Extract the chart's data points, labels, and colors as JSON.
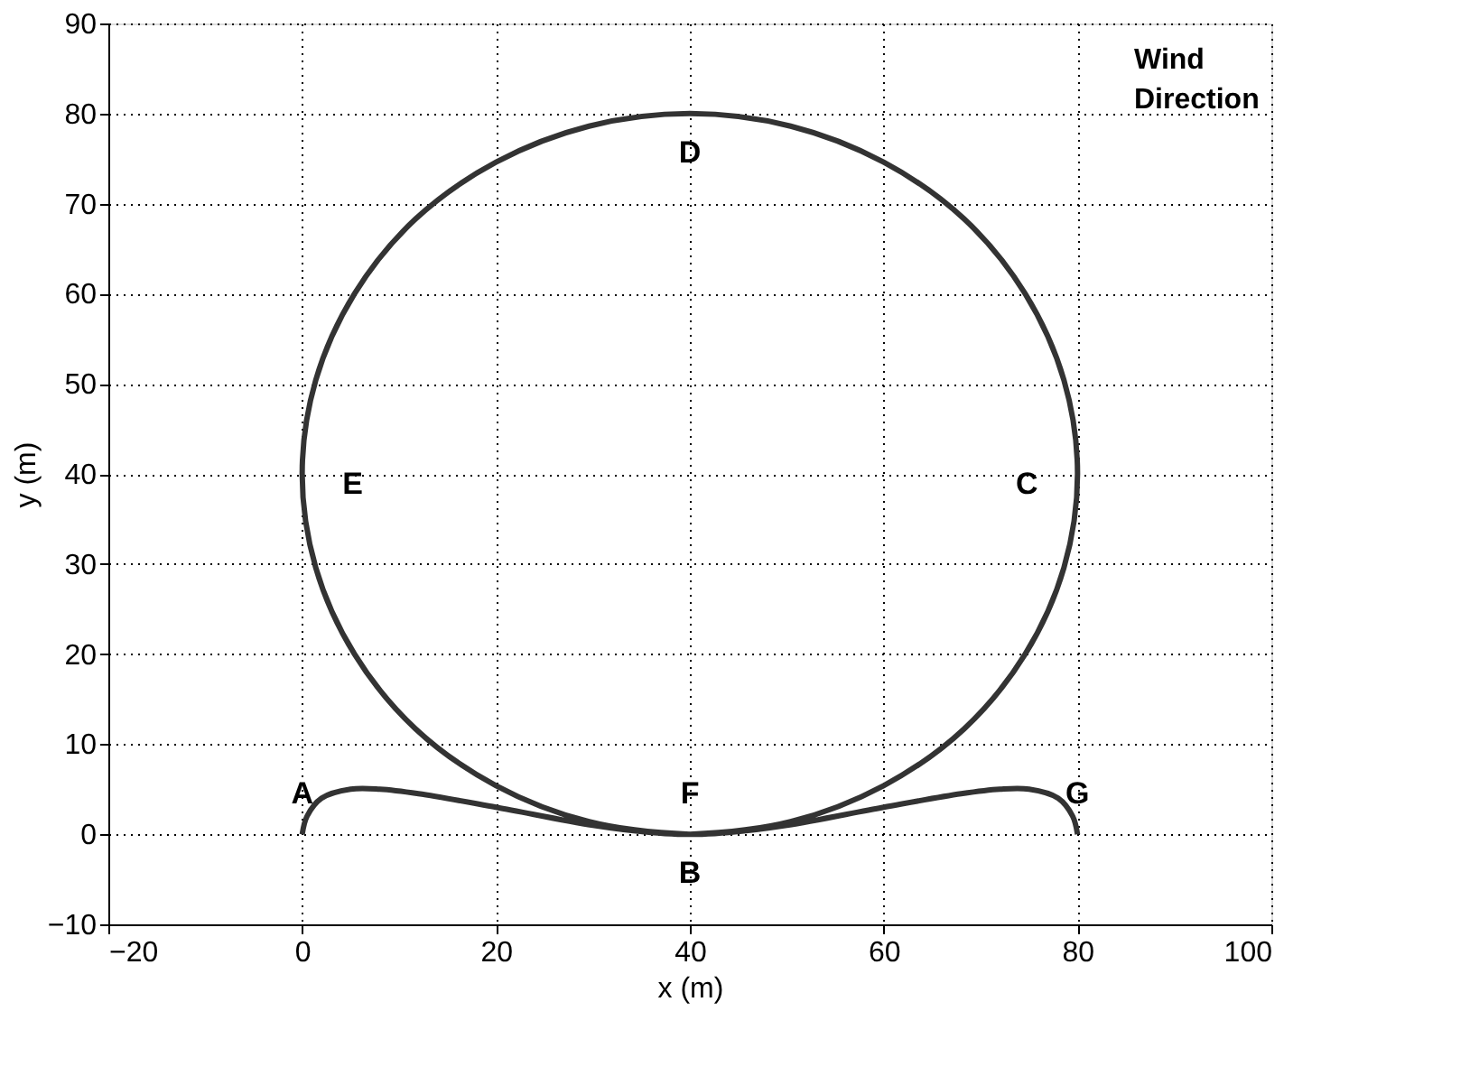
{
  "chart_data": {
    "type": "line",
    "xlabel": "x (m)",
    "ylabel": "y (m)",
    "xlim": [
      -20,
      100
    ],
    "xticks": [
      -20,
      0,
      20,
      40,
      60,
      80,
      100
    ],
    "ylim": [
      -10,
      90
    ],
    "yticks": [
      -10,
      0,
      10,
      20,
      30,
      40,
      50,
      60,
      70,
      80,
      90
    ],
    "grid": true,
    "marker": "none",
    "line_style": "solid",
    "series": [
      {
        "color": "#333333",
        "x": [
          0,
          0.5,
          2,
          5,
          8,
          12,
          20,
          30,
          36,
          40,
          50.4,
          60,
          68.3,
          74.6,
          78.6,
          80,
          78.6,
          74.6,
          68.3,
          60,
          50.4,
          40,
          29.6,
          20,
          11.7,
          5.4,
          1.4,
          0,
          1.4,
          5.4,
          11.7,
          20,
          29.6,
          40,
          44,
          50,
          60,
          68,
          72,
          75,
          78,
          79.5,
          80
        ],
        "values": [
          0,
          2,
          4,
          5,
          5,
          4.5,
          3,
          1,
          0.2,
          0,
          1.4,
          5.4,
          11.7,
          20,
          29.6,
          40,
          50.4,
          60,
          68.3,
          74.6,
          78.6,
          80,
          78.6,
          74.6,
          68.3,
          60,
          50.4,
          40,
          29.6,
          20,
          11.7,
          5.4,
          1.4,
          0,
          0.2,
          1,
          3,
          4.5,
          5,
          5,
          4,
          2,
          0
        ]
      }
    ],
    "annotations": [
      {
        "text": "A",
        "x": 0,
        "y": 0
      },
      {
        "text": "F",
        "x": 40,
        "y": 0
      },
      {
        "text": "G",
        "x": 80,
        "y": 0
      },
      {
        "text": "B",
        "x": 40,
        "y": 0
      },
      {
        "text": "C",
        "x": 80,
        "y": 40
      },
      {
        "text": "D",
        "x": 40,
        "y": 80
      },
      {
        "text": "E",
        "x": 0,
        "y": 40
      },
      "Wind Direction"
    ]
  }
}
